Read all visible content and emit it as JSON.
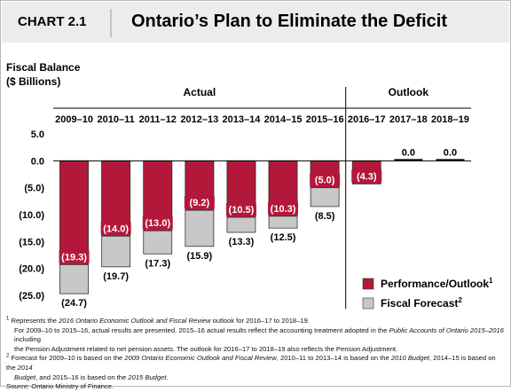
{
  "header": {
    "chart_number": "CHART 2.1"
  },
  "chart_data": {
    "type": "bar",
    "title": "Ontario’s Plan to Eliminate the Deficit",
    "ylabel_line1": "Fiscal Balance",
    "ylabel_line2": "($ Billions)",
    "ylim": [
      -25,
      5
    ],
    "yticks": [
      "5.0",
      "0.0",
      "(5.0)",
      "(10.0)",
      "(15.0)",
      "(20.0)",
      "(25.0)"
    ],
    "categories": [
      "2009–10",
      "2010–11",
      "2011–12",
      "2012–13",
      "2013–14",
      "2014–15",
      "2015–16",
      "2016–17",
      "2017–18",
      "2018–19"
    ],
    "groups": [
      {
        "label": "Actual",
        "categories": [
          "2009–10",
          "2010–11",
          "2011–12",
          "2012–13",
          "2013–14",
          "2014–15",
          "2015–16"
        ]
      },
      {
        "label": "Outlook",
        "categories": [
          "2016–17",
          "2017–18",
          "2018–19"
        ]
      }
    ],
    "series": [
      {
        "name": "Performance/Outlook",
        "name_sup": "1",
        "color": "#b3183a",
        "values": [
          -19.3,
          -14.0,
          -13.0,
          -9.2,
          -10.5,
          -10.3,
          -5.0,
          -4.3,
          0.0,
          0.0
        ],
        "labels": [
          "(19.3)",
          "(14.0)",
          "(13.0)",
          "(9.2)",
          "(10.5)",
          "(10.3)",
          "(5.0)",
          "(4.3)",
          "0.0",
          "0.0"
        ]
      },
      {
        "name": "Fiscal Forecast",
        "name_sup": "2",
        "color": "#c8c8c8",
        "values": [
          -24.7,
          -19.7,
          -17.3,
          -15.9,
          -13.3,
          -12.5,
          -8.5,
          null,
          null,
          null
        ],
        "labels": [
          "(24.7)",
          "(19.7)",
          "(17.3)",
          "(15.9)",
          "(13.3)",
          "(12.5)",
          "(8.5)",
          "",
          "",
          ""
        ]
      }
    ],
    "legend_position": "bottom-right",
    "grid": false
  },
  "footnotes": {
    "n1_line1_pre": "Represents the ",
    "n1_line1_em": "2016 Ontario Economic Outlook and Fiscal Review",
    "n1_line1_post": " outlook for 2016–17 to 2018–19.",
    "n1_line2_pre": "For 2009–10 to 2015–16, actual results are presented. 2015–16 actual results reflect the accounting treatment adopted in the ",
    "n1_line2_em": "Public Accounts of Ontario 2015–2016",
    "n1_line2_post": " including",
    "n1_line3": "the Pension Adjustment related to net pension assets. The outlook for 2016–17 to 2018–19 also reflects the Pension Adjustment.",
    "n2_line1_pre": "Forecast for 2009–10 is based on the ",
    "n2_line1_em1": "2009 Ontario Economic Outlook and Fiscal Review",
    "n2_line1_mid": ", 2010–11 to 2013–14 is based on the ",
    "n2_line1_em2": "2010 Budget",
    "n2_line1_mid2": ", 2014–15 is based on the ",
    "n2_line1_em3": "2014",
    "n2_line2_em": "Budget",
    "n2_line2_mid": ", and 2015–16 is based on the ",
    "n2_line2_em2": "2015 Budget",
    "n2_line2_post": ".",
    "source_label": "Source:",
    "source_text": " Ontario Ministry of Finance."
  }
}
